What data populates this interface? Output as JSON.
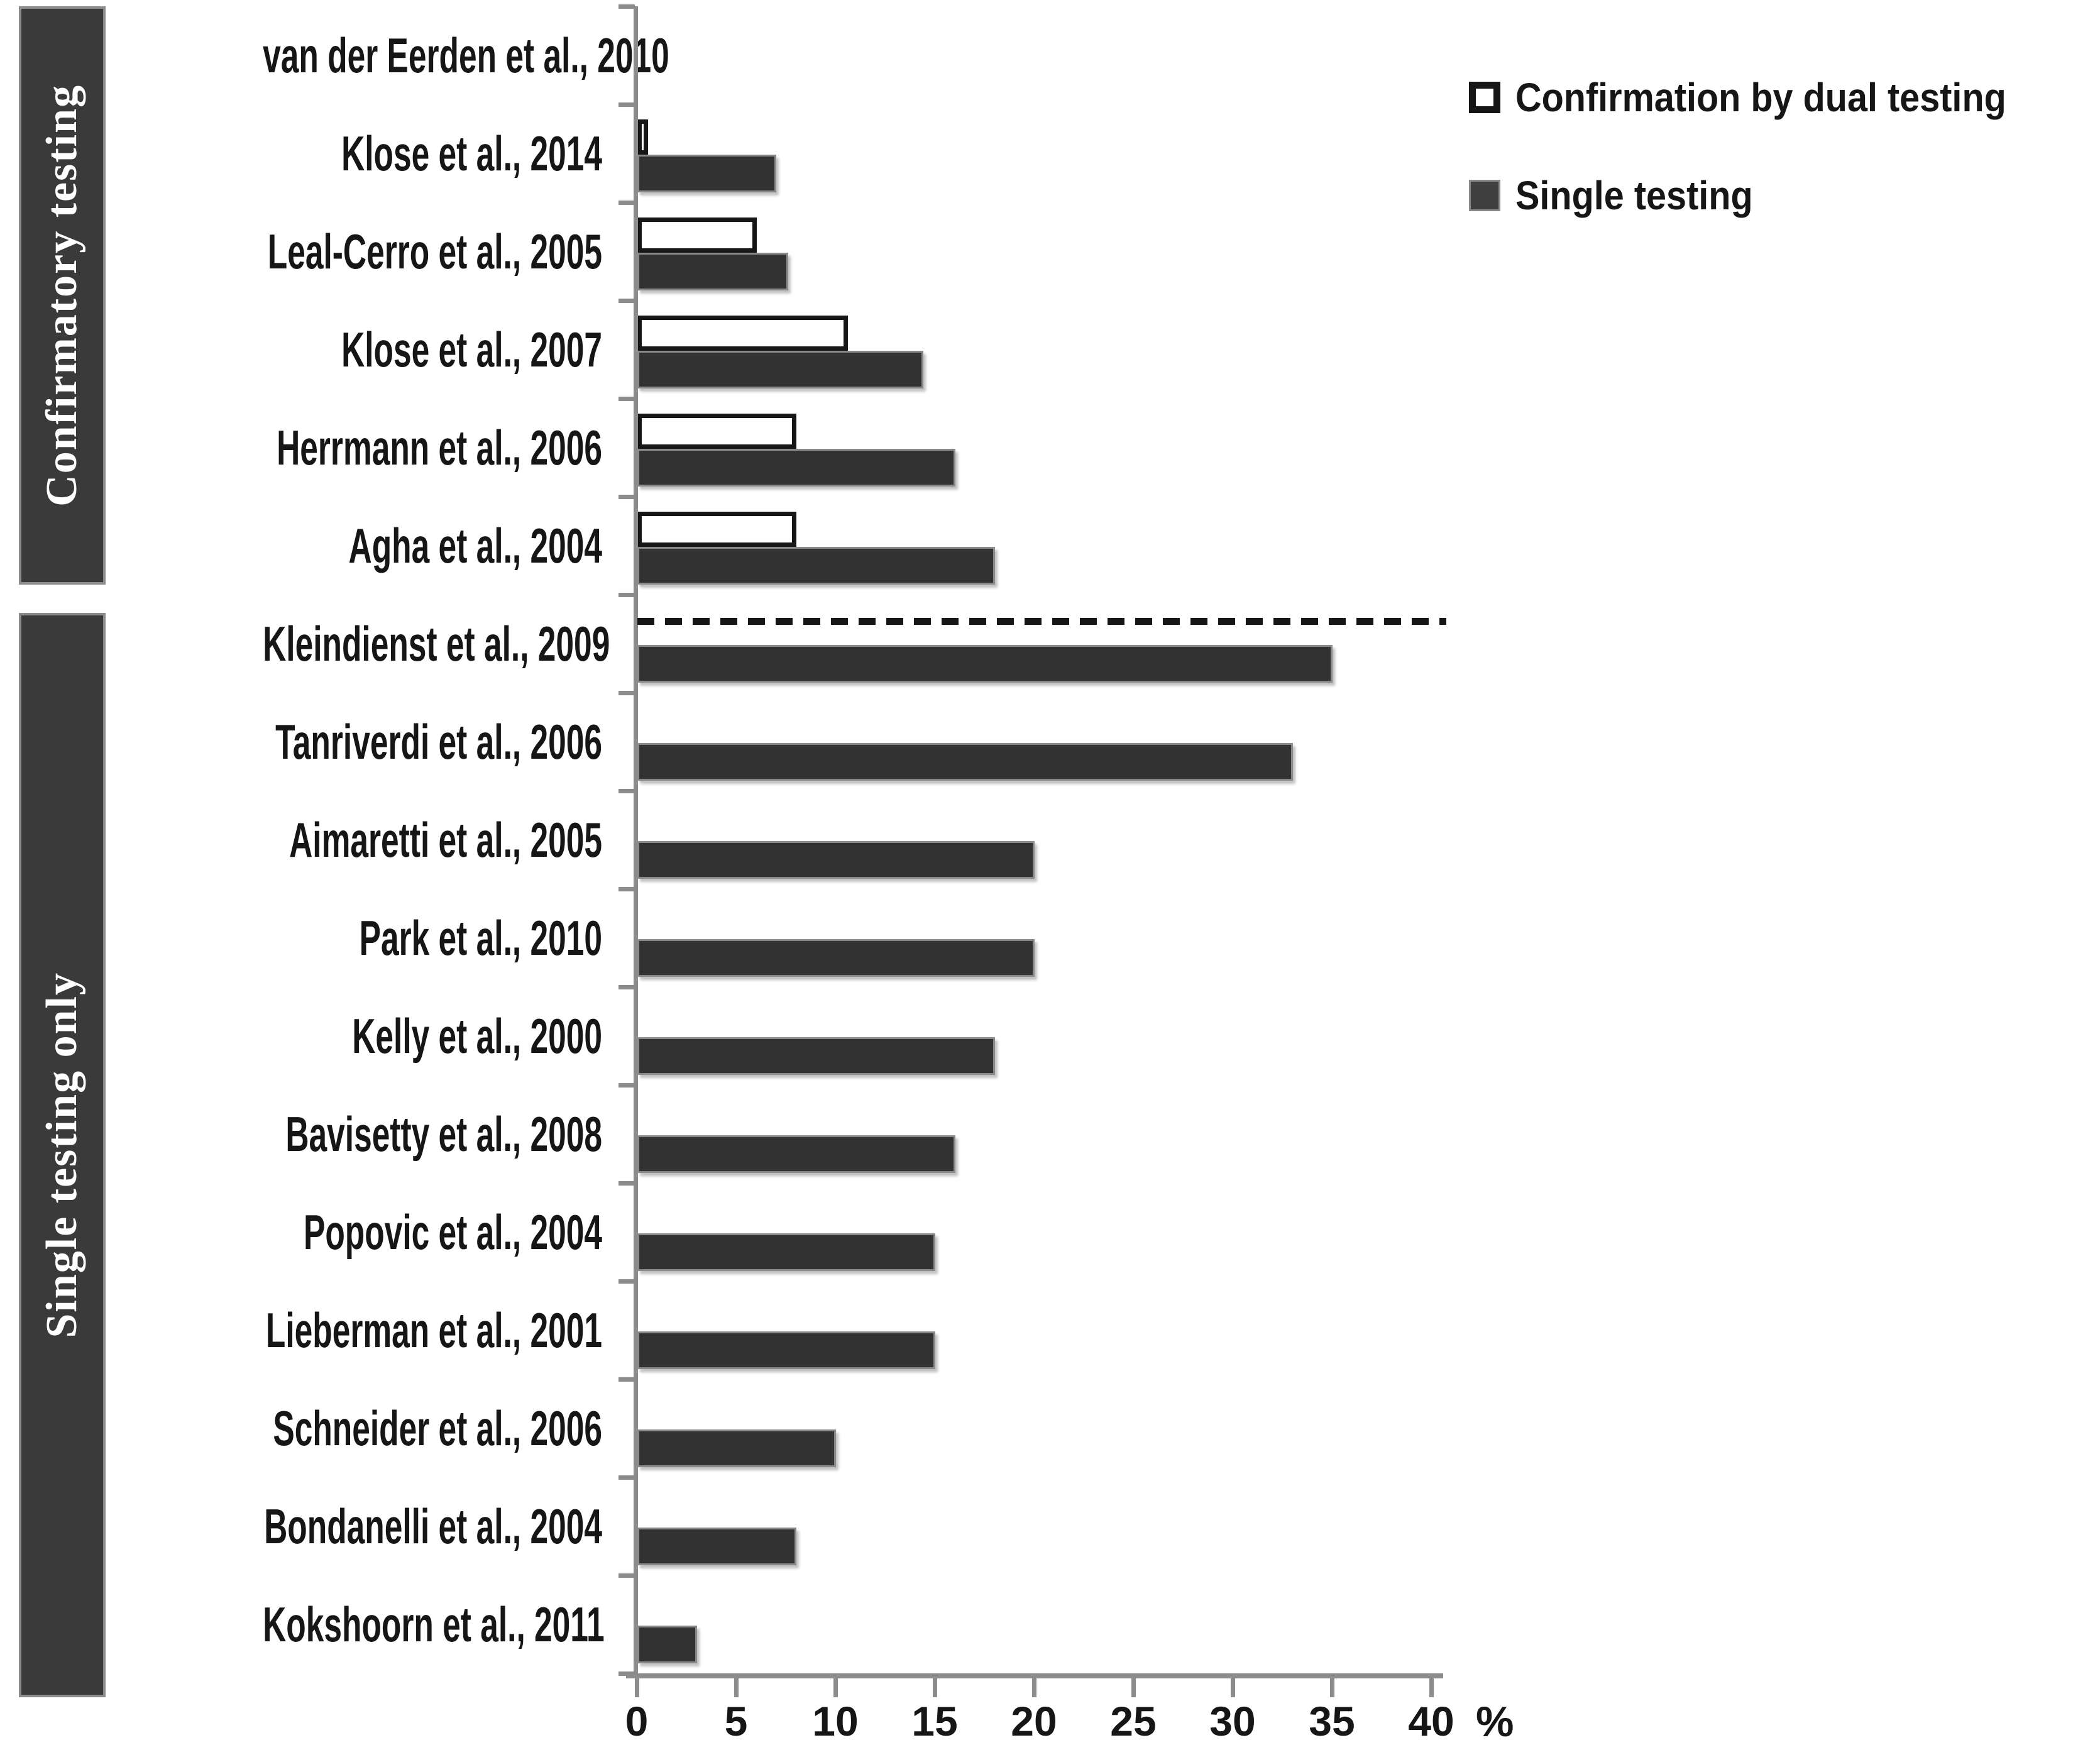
{
  "chart_data": {
    "type": "bar",
    "orientation": "horizontal",
    "title": "",
    "xlabel": "%",
    "xlim": [
      0,
      40
    ],
    "xticks": [
      0,
      5,
      10,
      15,
      20,
      25,
      30,
      35,
      40
    ],
    "grid": false,
    "legend_position": "top-right",
    "legend": [
      {
        "label": "Confirmation by dual testing",
        "swatch": "white-outlined"
      },
      {
        "label": "Single testing",
        "swatch": "dark-filled"
      }
    ],
    "series_names": [
      "Confirmation by dual testing",
      "Single testing"
    ],
    "sections": [
      {
        "label": "Confirmatory testing",
        "studies": [
          {
            "label": "van der Eerden et al., 2010",
            "dual": null,
            "single": null
          },
          {
            "label": "Klose et al., 2014",
            "dual": 0.5,
            "single": 7
          },
          {
            "label": "Leal-Cerro et al., 2005",
            "dual": 6,
            "single": 7.6
          },
          {
            "label": "Klose et al., 2007",
            "dual": 10.6,
            "single": 14.4
          },
          {
            "label": "Herrmann et al., 2006",
            "dual": 8,
            "single": 16
          },
          {
            "label": "Agha et al., 2004",
            "dual": 8,
            "single": 18
          }
        ]
      },
      {
        "label": "Single testing only",
        "studies": [
          {
            "label": "Kleindienst et al., 2009",
            "dual": null,
            "single": 35
          },
          {
            "label": "Tanriverdi et al., 2006",
            "dual": null,
            "single": 33
          },
          {
            "label": "Aimaretti et al., 2005",
            "dual": null,
            "single": 20
          },
          {
            "label": "Park et al., 2010",
            "dual": null,
            "single": 20
          },
          {
            "label": "Kelly et al., 2000",
            "dual": null,
            "single": 18
          },
          {
            "label": "Bavisetty et al., 2008",
            "dual": null,
            "single": 16
          },
          {
            "label": "Popovic et al., 2004",
            "dual": null,
            "single": 15
          },
          {
            "label": "Lieberman et al., 2001",
            "dual": null,
            "single": 15
          },
          {
            "label": "Schneider et al., 2006",
            "dual": null,
            "single": 10
          },
          {
            "label": "Bondanelli et al., 2004",
            "dual": null,
            "single": 8
          },
          {
            "label": "Kokshoorn et al., 2011",
            "dual": null,
            "single": 3
          }
        ]
      }
    ],
    "separator": {
      "style": "dashed",
      "after_category": "Agha et al., 2004"
    }
  },
  "colors": {
    "single_bar_fill": "#323232",
    "single_bar_border": "#8a8a8a",
    "dual_bar_fill": "#ffffff",
    "dual_bar_border": "#161616",
    "sidebar_fill": "#3a3a3a",
    "sidebar_border": "#8c8c8c",
    "sidebar_text": "#ffffff",
    "axis": "#8c8c8c",
    "text": "#161616",
    "separator": "#161616"
  }
}
